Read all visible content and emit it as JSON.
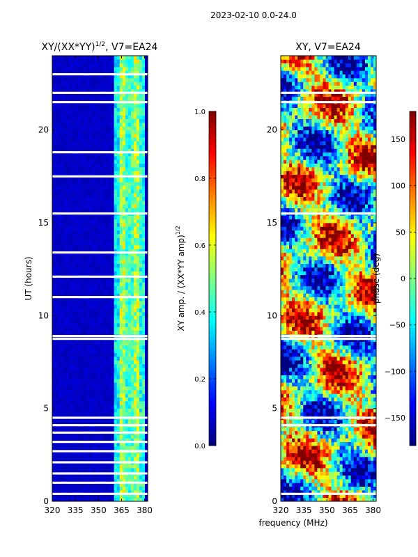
{
  "figure": {
    "suptitle": "2023-02-10 0.0-24.0",
    "xlabel_shared": "frequency (MHz)"
  },
  "chart_data": [
    {
      "type": "heatmap",
      "title": "XY/(XX*YY)^{1/2}, V7=EA24",
      "title_main": "XY/(XX*YY)",
      "title_sup": "1/2",
      "title_tail": ", V7=EA24",
      "xlabel": "",
      "ylabel": "UT (hours)",
      "xlim": [
        320,
        382
      ],
      "ylim": [
        0,
        24
      ],
      "xticks": [
        320,
        335,
        350,
        365,
        380
      ],
      "yticks": [
        0,
        5,
        10,
        15,
        20
      ],
      "band_edges_mhz": [
        360,
        364,
        368,
        372,
        376,
        380
      ],
      "band_levels": [
        0.38,
        0.55,
        0.45,
        0.55,
        0.42
      ],
      "background_level": 0.05,
      "flagged_utc_hours": [
        0.4,
        1.0,
        1.5,
        2.1,
        2.7,
        3.2,
        3.7,
        4.1,
        4.5,
        8.75,
        8.9,
        11.0,
        12.1,
        13.4,
        15.5,
        17.5,
        18.8,
        21.5,
        22.0,
        23.0
      ],
      "colorbar": {
        "label": "XY amp. / (XX*YY amp)^{1/2}",
        "label_main": "XY amp. / (XX*YY amp)",
        "label_sup": "1/2",
        "range": [
          0.0,
          1.0
        ],
        "ticks": [
          "0.0",
          "0.2",
          "0.4",
          "0.6",
          "0.8",
          "1.0"
        ],
        "tick_values": [
          0.0,
          0.2,
          0.4,
          0.6,
          0.8,
          1.0
        ],
        "colormap": "jet"
      }
    },
    {
      "type": "heatmap",
      "title": "XY, V7=EA24",
      "xlabel": "frequency (MHz)",
      "ylabel": "",
      "xlim": [
        320,
        382
      ],
      "ylim": [
        0,
        24
      ],
      "xticks": [
        320,
        335,
        350,
        365,
        380
      ],
      "yticks": [
        0,
        5,
        10,
        15,
        20
      ],
      "flagged_utc_hours": [
        0.4,
        4.1,
        4.5,
        8.75,
        8.9,
        15.5,
        21.5,
        22.0
      ],
      "colorbar": {
        "label": "phase (deg)",
        "range": [
          -180,
          180
        ],
        "ticks": [
          "−150",
          "−100",
          "−50",
          "0",
          "50",
          "100",
          "150"
        ],
        "tick_values": [
          -150,
          -100,
          -50,
          0,
          50,
          100,
          150
        ],
        "colormap": "jet"
      }
    }
  ]
}
